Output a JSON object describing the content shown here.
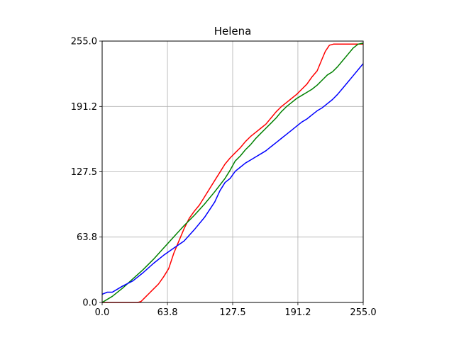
{
  "chart_data": {
    "type": "line",
    "title": "Helena",
    "xlabel": "",
    "ylabel": "",
    "xlim": [
      0,
      255
    ],
    "ylim": [
      0,
      255
    ],
    "xticks": [
      0,
      63.8,
      127.5,
      191.2,
      255
    ],
    "yticks": [
      0,
      63.8,
      127.5,
      191.2,
      255
    ],
    "xtick_labels": [
      "0.0",
      "63.8",
      "127.5",
      "191.2",
      "255.0"
    ],
    "ytick_labels": [
      "0.0",
      "63.8",
      "127.5",
      "191.2",
      "255.0"
    ],
    "grid": true,
    "legend": "none",
    "series": [
      {
        "color": "#ff0000",
        "points": [
          [
            0,
            0
          ],
          [
            20,
            0
          ],
          [
            35,
            0
          ],
          [
            38,
            1
          ],
          [
            42,
            5
          ],
          [
            46,
            9
          ],
          [
            50,
            13
          ],
          [
            55,
            18
          ],
          [
            60,
            25
          ],
          [
            65,
            33
          ],
          [
            70,
            48
          ],
          [
            75,
            60
          ],
          [
            80,
            72
          ],
          [
            85,
            82
          ],
          [
            90,
            89
          ],
          [
            95,
            95
          ],
          [
            100,
            103
          ],
          [
            105,
            111
          ],
          [
            110,
            119
          ],
          [
            115,
            127
          ],
          [
            120,
            135
          ],
          [
            125,
            141
          ],
          [
            130,
            146
          ],
          [
            135,
            151
          ],
          [
            140,
            157
          ],
          [
            145,
            162
          ],
          [
            150,
            166
          ],
          [
            155,
            170
          ],
          [
            160,
            174
          ],
          [
            165,
            180
          ],
          [
            170,
            186
          ],
          [
            175,
            191
          ],
          [
            180,
            195
          ],
          [
            185,
            199
          ],
          [
            190,
            203
          ],
          [
            195,
            208
          ],
          [
            200,
            213
          ],
          [
            205,
            220
          ],
          [
            210,
            226
          ],
          [
            215,
            238
          ],
          [
            218,
            245
          ],
          [
            222,
            251
          ],
          [
            226,
            252
          ],
          [
            240,
            252
          ],
          [
            255,
            252
          ]
        ]
      },
      {
        "color": "#008000",
        "points": [
          [
            0,
            0
          ],
          [
            10,
            6
          ],
          [
            20,
            14
          ],
          [
            30,
            23
          ],
          [
            40,
            32
          ],
          [
            50,
            42
          ],
          [
            60,
            53
          ],
          [
            70,
            64
          ],
          [
            80,
            75
          ],
          [
            90,
            85
          ],
          [
            100,
            96
          ],
          [
            110,
            108
          ],
          [
            120,
            121
          ],
          [
            125,
            129
          ],
          [
            130,
            138
          ],
          [
            135,
            143
          ],
          [
            140,
            149
          ],
          [
            145,
            154
          ],
          [
            150,
            160
          ],
          [
            155,
            165
          ],
          [
            160,
            170
          ],
          [
            165,
            175
          ],
          [
            170,
            180
          ],
          [
            175,
            186
          ],
          [
            180,
            191
          ],
          [
            185,
            195
          ],
          [
            190,
            199
          ],
          [
            195,
            202
          ],
          [
            200,
            205
          ],
          [
            205,
            208
          ],
          [
            210,
            212
          ],
          [
            215,
            217
          ],
          [
            220,
            222
          ],
          [
            225,
            225
          ],
          [
            230,
            230
          ],
          [
            235,
            236
          ],
          [
            240,
            242
          ],
          [
            245,
            248
          ],
          [
            250,
            252
          ],
          [
            255,
            253
          ]
        ]
      },
      {
        "color": "#0000ff",
        "points": [
          [
            0,
            8
          ],
          [
            5,
            10
          ],
          [
            10,
            10
          ],
          [
            15,
            13
          ],
          [
            20,
            16
          ],
          [
            30,
            21
          ],
          [
            40,
            29
          ],
          [
            50,
            38
          ],
          [
            60,
            46
          ],
          [
            70,
            53
          ],
          [
            80,
            60
          ],
          [
            90,
            71
          ],
          [
            100,
            83
          ],
          [
            110,
            98
          ],
          [
            115,
            109
          ],
          [
            120,
            117
          ],
          [
            125,
            121
          ],
          [
            130,
            128
          ],
          [
            135,
            132
          ],
          [
            140,
            136
          ],
          [
            145,
            139
          ],
          [
            150,
            142
          ],
          [
            155,
            145
          ],
          [
            160,
            148
          ],
          [
            165,
            152
          ],
          [
            170,
            156
          ],
          [
            175,
            160
          ],
          [
            180,
            164
          ],
          [
            185,
            168
          ],
          [
            190,
            172
          ],
          [
            195,
            176
          ],
          [
            200,
            179
          ],
          [
            205,
            183
          ],
          [
            210,
            187
          ],
          [
            215,
            190
          ],
          [
            220,
            194
          ],
          [
            225,
            198
          ],
          [
            230,
            203
          ],
          [
            235,
            209
          ],
          [
            240,
            215
          ],
          [
            245,
            221
          ],
          [
            250,
            227
          ],
          [
            255,
            233
          ]
        ]
      }
    ]
  }
}
